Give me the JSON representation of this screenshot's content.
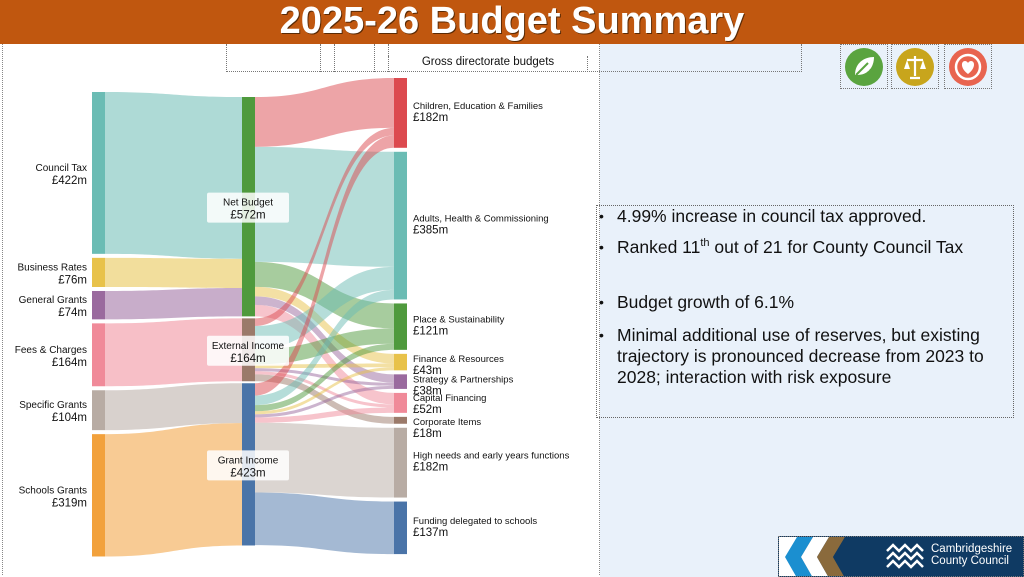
{
  "slide": {
    "title": "2025-26 Budget Summary",
    "gross_caption": "Gross directorate budgets"
  },
  "icons": [
    "leaf-plus-icon",
    "scales-icon",
    "heart-ring-icon"
  ],
  "colors": {
    "title_bar": "#c0570f",
    "right_panel": "#e9f1fa",
    "icon_green": "#5aa43f",
    "icon_gold": "#c8a51c",
    "icon_coral": "#e8644f",
    "logo_bg": "#0f3a63"
  },
  "bullets": [
    {
      "parts": [
        "4.99% increase in council tax approved."
      ]
    },
    {
      "parts": [
        "Ranked 11",
        "th",
        " out of 21 for County Council Tax"
      ]
    },
    {
      "parts": [
        "Budget growth of 6.1%"
      ]
    },
    {
      "parts": [
        "Minimal additional use of reserves, but existing trajectory is pronounced decrease from 2023 to 2028; interaction with risk exposure"
      ]
    }
  ],
  "logo": {
    "line1": "Cambridgeshire",
    "line2": "County Council"
  },
  "chart_data": {
    "type": "sankey",
    "title": "",
    "units": "£m",
    "sources": [
      {
        "name": "Council Tax",
        "label": "£422m",
        "value": 422,
        "color": "#6bbcb4"
      },
      {
        "name": "Business Rates",
        "label": "£76m",
        "value": 76,
        "color": "#e8c24a"
      },
      {
        "name": "General Grants",
        "label": "£74m",
        "value": 74,
        "color": "#9a6a9e"
      },
      {
        "name": "Fees & Charges",
        "label": "£164m",
        "value": 164,
        "color": "#f08a99"
      },
      {
        "name": "Specific Grants",
        "label": "£104m",
        "value": 104,
        "color": "#b8aca4"
      },
      {
        "name": "Schools Grants",
        "label": "£319m",
        "value": 319,
        "color": "#f2a13c"
      }
    ],
    "middle": [
      {
        "name": "Net Budget",
        "label": "£572m",
        "value": 572,
        "color": "#4f9a3d"
      },
      {
        "name": "External Income",
        "label": "£164m",
        "value": 164,
        "color": "#9b7a6a"
      },
      {
        "name": "Grant Income",
        "label": "£423m",
        "value": 423,
        "color": "#4a74a8"
      }
    ],
    "targets": [
      {
        "name": "Children, Education & Families",
        "label": "£182m",
        "value": 182,
        "color": "#dc4a4f"
      },
      {
        "name": "Adults, Health & Commissioning",
        "label": "£385m",
        "value": 385,
        "color": "#6bbcb4"
      },
      {
        "name": "Place & Sustainability",
        "label": "£121m",
        "value": 121,
        "color": "#4f9a3d"
      },
      {
        "name": "Finance & Resources",
        "label": "£43m",
        "value": 43,
        "color": "#e8c24a"
      },
      {
        "name": "Strategy & Partnerships",
        "label": "£38m",
        "value": 38,
        "color": "#9a6a9e"
      },
      {
        "name": "Capital Financing",
        "label": "£52m",
        "value": 52,
        "color": "#f08a99"
      },
      {
        "name": "Corporate Items",
        "label": "£18m",
        "value": 18,
        "color": "#9b7a6a"
      },
      {
        "name": "High needs and early years functions",
        "label": "£182m",
        "value": 182,
        "color": "#b8aca4"
      },
      {
        "name": "Funding delegated to schools",
        "label": "£137m",
        "value": 137,
        "color": "#4a74a8"
      }
    ],
    "links_stage1": [
      {
        "source": "Council Tax",
        "target": "Net Budget",
        "value": 422
      },
      {
        "source": "Business Rates",
        "target": "Net Budget",
        "value": 76
      },
      {
        "source": "General Grants",
        "target": "Net Budget",
        "value": 74
      },
      {
        "source": "Fees & Charges",
        "target": "External Income",
        "value": 164
      },
      {
        "source": "Specific Grants",
        "target": "Grant Income",
        "value": 104
      },
      {
        "source": "Schools Grants",
        "target": "Grant Income",
        "value": 319
      }
    ],
    "links_stage2": [
      {
        "source": "Net Budget",
        "target": "Children, Education & Families",
        "value": 130
      },
      {
        "source": "Net Budget",
        "target": "Adults, Health & Commissioning",
        "value": 300
      },
      {
        "source": "Net Budget",
        "target": "Place & Sustainability",
        "value": 65
      },
      {
        "source": "Net Budget",
        "target": "Finance & Resources",
        "value": 25
      },
      {
        "source": "Net Budget",
        "target": "Strategy & Partnerships",
        "value": 22
      },
      {
        "source": "Net Budget",
        "target": "Capital Financing",
        "value": 30
      },
      {
        "source": "External Income",
        "target": "Children, Education & Families",
        "value": 20
      },
      {
        "source": "External Income",
        "target": "Adults, Health & Commissioning",
        "value": 60
      },
      {
        "source": "External Income",
        "target": "Place & Sustainability",
        "value": 40
      },
      {
        "source": "External Income",
        "target": "Finance & Resources",
        "value": 10
      },
      {
        "source": "External Income",
        "target": "Strategy & Partnerships",
        "value": 8
      },
      {
        "source": "External Income",
        "target": "Capital Financing",
        "value": 8
      },
      {
        "source": "External Income",
        "target": "Corporate Items",
        "value": 18
      },
      {
        "source": "Grant Income",
        "target": "Children, Education & Families",
        "value": 32
      },
      {
        "source": "Grant Income",
        "target": "Adults, Health & Commissioning",
        "value": 25
      },
      {
        "source": "Grant Income",
        "target": "Place & Sustainability",
        "value": 16
      },
      {
        "source": "Grant Income",
        "target": "Finance & Resources",
        "value": 8
      },
      {
        "source": "Grant Income",
        "target": "Strategy & Partnerships",
        "value": 8
      },
      {
        "source": "Grant Income",
        "target": "Capital Financing",
        "value": 14
      },
      {
        "source": "Grant Income",
        "target": "High needs and early years functions",
        "value": 182
      },
      {
        "source": "Grant Income",
        "target": "Funding delegated to schools",
        "value": 137
      }
    ]
  }
}
